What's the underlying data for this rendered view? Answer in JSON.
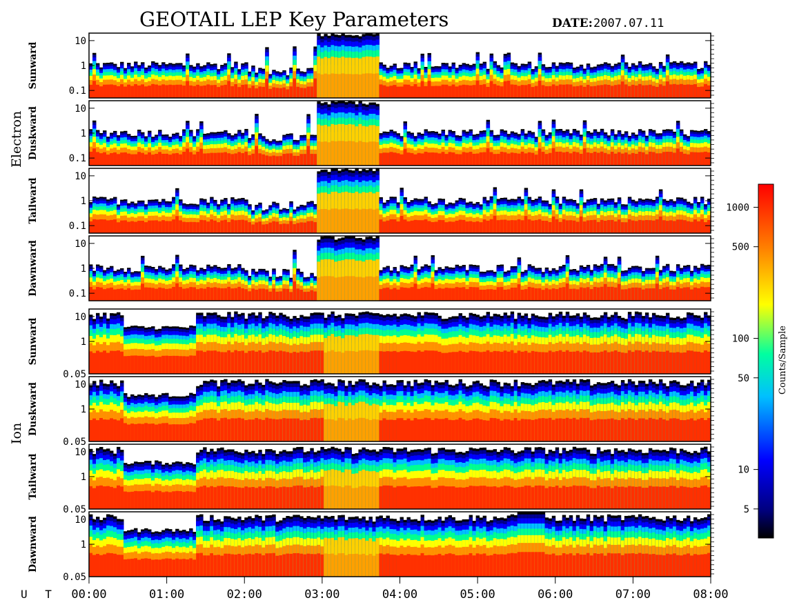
{
  "title": "GEOTAIL LEP Key Parameters",
  "date_label": "DATE:",
  "date_value": "2007.07.11",
  "chart_data": {
    "type": "heatmap",
    "x_axis": {
      "label": "U T",
      "ticks": [
        "00:00",
        "01:00",
        "02:00",
        "03:00",
        "04:00",
        "05:00",
        "06:00",
        "07:00",
        "08:00"
      ],
      "range_hours": [
        0,
        8
      ]
    },
    "groups": [
      {
        "name": "Electron",
        "y_scale": "log",
        "y_range": [
          0.05,
          20
        ],
        "y_ticks": [
          "10",
          "1",
          "0.1"
        ],
        "panels": [
          "Sunward",
          "Duskward",
          "Tailward",
          "Dawnward"
        ]
      },
      {
        "name": "Ion",
        "y_scale": "log",
        "y_range": [
          0.05,
          20
        ],
        "y_ticks": [
          "10",
          "1",
          "0.05"
        ],
        "panels": [
          "Sunward",
          "Duskward",
          "Tailward",
          "Dawnward"
        ]
      }
    ],
    "colorbar": {
      "label": "Counts/Sample",
      "scale": "log",
      "range": [
        3,
        1500
      ],
      "ticks": [
        "1000",
        "500",
        "100",
        "50",
        "10",
        "5"
      ],
      "colors": [
        "#000000",
        "#000080",
        "#0000ff",
        "#00c0ff",
        "#00ffa0",
        "#ffff00",
        "#ff8000",
        "#ff0000"
      ]
    }
  }
}
